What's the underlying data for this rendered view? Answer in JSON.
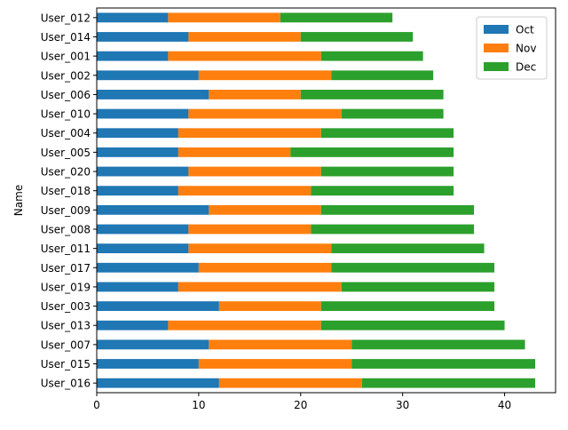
{
  "chart_data": {
    "type": "bar",
    "orientation": "horizontal",
    "stacked": true,
    "title": "",
    "xlabel": "",
    "ylabel": "Name",
    "xlim": [
      0,
      45
    ],
    "x_ticks": [
      0,
      10,
      20,
      30,
      40
    ],
    "grid": false,
    "legend_position": "top-right",
    "categories": [
      "User_012",
      "User_014",
      "User_001",
      "User_002",
      "User_006",
      "User_010",
      "User_004",
      "User_005",
      "User_020",
      "User_018",
      "User_009",
      "User_008",
      "User_011",
      "User_017",
      "User_019",
      "User_003",
      "User_013",
      "User_007",
      "User_015",
      "User_016"
    ],
    "series": [
      {
        "name": "Oct",
        "color": "#1f77b4",
        "values": [
          7,
          9,
          7,
          10,
          11,
          9,
          8,
          8,
          9,
          8,
          11,
          9,
          9,
          10,
          8,
          12,
          7,
          11,
          10,
          12
        ]
      },
      {
        "name": "Nov",
        "color": "#ff7f0e",
        "values": [
          11,
          11,
          15,
          13,
          9,
          15,
          14,
          11,
          13,
          13,
          11,
          12,
          14,
          13,
          16,
          10,
          15,
          14,
          15,
          14
        ]
      },
      {
        "name": "Dec",
        "color": "#2ca02c",
        "values": [
          11,
          11,
          10,
          10,
          14,
          10,
          13,
          16,
          13,
          14,
          15,
          16,
          15,
          16,
          15,
          17,
          18,
          17,
          18,
          17
        ]
      }
    ]
  }
}
